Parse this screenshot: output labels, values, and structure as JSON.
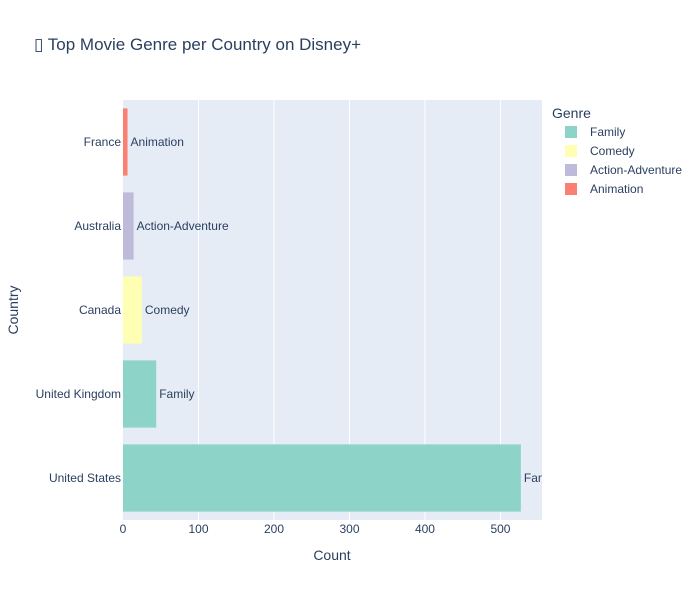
{
  "chart_data": {
    "type": "bar",
    "orientation": "horizontal",
    "title": "▯ Top Movie Genre per Country on Disney+",
    "xlabel": "Count",
    "ylabel": "Country",
    "xlim": [
      0,
      555
    ],
    "xticks": [
      0,
      100,
      200,
      300,
      400,
      500
    ],
    "grid": true,
    "categories": [
      "France",
      "Australia",
      "Canada",
      "United Kingdom",
      "United States"
    ],
    "bars": [
      {
        "country": "France",
        "genre": "Animation",
        "value": 6
      },
      {
        "country": "Australia",
        "genre": "Action-Adventure",
        "value": 14
      },
      {
        "country": "Canada",
        "genre": "Comedy",
        "value": 25
      },
      {
        "country": "United Kingdom",
        "genre": "Family",
        "value": 44
      },
      {
        "country": "United States",
        "genre": "Family",
        "value": 527
      }
    ],
    "legend": {
      "title": "Genre",
      "placement": "right",
      "items": [
        {
          "name": "Family",
          "color": "#8dd3c7"
        },
        {
          "name": "Comedy",
          "color": "#ffffb3"
        },
        {
          "name": "Action-Adventure",
          "color": "#bebada"
        },
        {
          "name": "Animation",
          "color": "#fb8072"
        }
      ]
    },
    "colors": {
      "plot_bg": "#e5ecf6",
      "grid": "#ffffff",
      "text": "#2a3f5f"
    }
  }
}
